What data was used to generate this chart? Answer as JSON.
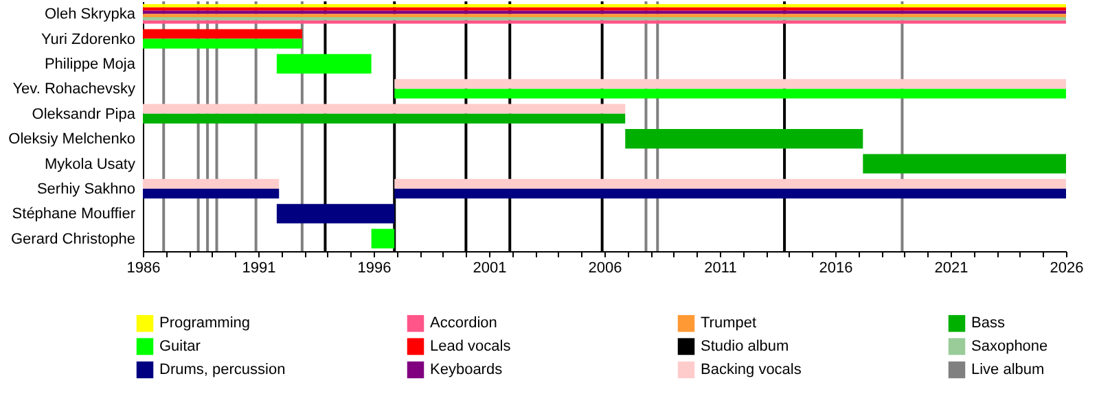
{
  "chart_data": {
    "type": "bar",
    "orientation": "horizontal",
    "legend": "bottom",
    "categories": [
      "Oleh Skrypka",
      "Yuri Zdorenko",
      "Philippe Moja",
      "Yev. Rohachevsky",
      "Oleksandr Pipa",
      "Oleksiy Melchenko",
      "Mykola Usaty",
      "Serhiy Sakhno",
      "Stéphane Mouffier",
      "Gerard Christophe"
    ],
    "xlim": [
      1986,
      2026
    ],
    "xticks": [
      1986,
      {
        "value": 1987,
        "label": null
      },
      {
        "value": 1988,
        "label": null
      },
      {
        "value": 1989,
        "label": null
      },
      {
        "value": 1990,
        "label": null
      },
      1991,
      {
        "value": 1992,
        "label": null
      },
      {
        "value": 1993,
        "label": null
      },
      {
        "value": 1994,
        "label": null
      },
      {
        "value": 1995,
        "label": null
      },
      1996,
      {
        "value": 1997,
        "label": null
      },
      {
        "value": 1998,
        "label": null
      },
      {
        "value": 1999,
        "label": null
      },
      {
        "value": 2000,
        "label": null
      },
      2001,
      {
        "value": 2002,
        "label": null
      },
      {
        "value": 2003,
        "label": null
      },
      {
        "value": 2004,
        "label": null
      },
      {
        "value": 2005,
        "label": null
      },
      2006,
      {
        "value": 2007,
        "label": null
      },
      {
        "value": 2008,
        "label": null
      },
      {
        "value": 2009,
        "label": null
      },
      {
        "value": 2010,
        "label": null
      },
      2011,
      {
        "value": 2012,
        "label": null
      },
      {
        "value": 2013,
        "label": null
      },
      {
        "value": 2014,
        "label": null
      },
      {
        "value": 2015,
        "label": null
      },
      2016,
      {
        "value": 2017,
        "label": null
      },
      {
        "value": 2018,
        "label": null
      },
      {
        "value": 2019,
        "label": null
      },
      {
        "value": 2020,
        "label": null
      },
      2021,
      {
        "value": 2022,
        "label": null
      },
      {
        "value": 2023,
        "label": null
      },
      {
        "value": 2024,
        "label": null
      },
      {
        "value": 2025,
        "label": null
      },
      2026
    ],
    "series": [
      {
        "name": "Programming",
        "color": "#ffff00",
        "values": [
          40,
          null,
          null,
          null,
          null,
          null,
          null,
          null,
          null,
          null
        ],
        "base": [
          1986,
          null,
          null,
          null,
          null,
          null,
          null,
          null,
          null,
          null
        ]
      },
      {
        "name": "Lead vocals",
        "color": "#ff0000",
        "values": [
          40,
          6.9,
          null,
          null,
          null,
          null,
          null,
          null,
          null,
          null
        ],
        "base": [
          1986,
          1986,
          null,
          null,
          null,
          null,
          null,
          null,
          null,
          null
        ]
      },
      {
        "name": "Backing vocals",
        "color": "#ffcccc",
        "values": [
          null,
          null,
          null,
          29.1,
          20.9,
          null,
          null,
          5.9,
          null,
          null
        ],
        "base": [
          null,
          null,
          null,
          1996.9,
          1986,
          null,
          null,
          1986,
          null,
          null
        ]
      },
      {
        "name": "Guitar",
        "color": "#00ff00",
        "values": [
          null,
          6.9,
          4.1,
          29.1,
          null,
          null,
          null,
          null,
          null,
          1.0
        ],
        "base": [
          null,
          1986,
          1991.8,
          1996.9,
          null,
          null,
          null,
          null,
          null,
          1995.9
        ]
      },
      {
        "name": "Keyboards",
        "color": "#800080",
        "values": [
          40,
          null,
          null,
          null,
          null,
          null,
          null,
          null,
          null,
          null
        ],
        "base": [
          1986,
          null,
          null,
          null,
          null,
          null,
          null,
          null,
          null,
          null
        ]
      },
      {
        "name": "Bass",
        "color": "#00b000",
        "values": [
          null,
          null,
          null,
          null,
          20.9,
          10.3,
          8.8,
          null,
          null,
          null
        ],
        "base": [
          null,
          null,
          null,
          null,
          1986,
          2006.9,
          2017.2,
          null,
          null,
          null
        ]
      },
      {
        "name": "Drums, percussion",
        "color": "#000080",
        "values": [
          null,
          null,
          null,
          null,
          null,
          null,
          null,
          5.9,
          5.1,
          null
        ],
        "base": [
          null,
          null,
          null,
          null,
          null,
          null,
          null,
          1986,
          1991.8,
          null
        ]
      },
      {
        "name": "Trumpet",
        "color": "#ff9933",
        "values": [
          40,
          null,
          null,
          null,
          null,
          null,
          null,
          null,
          null,
          null
        ],
        "base": [
          1986,
          null,
          null,
          null,
          null,
          null,
          null,
          null,
          null,
          null
        ]
      },
      {
        "name": "Saxophone",
        "color": "#99cc99",
        "values": [
          40,
          null,
          null,
          null,
          null,
          null,
          null,
          null,
          null,
          null
        ],
        "base": [
          1986,
          null,
          null,
          null,
          null,
          null,
          null,
          null,
          null,
          null
        ]
      },
      {
        "name": "Accordion",
        "color": "#ff5588",
        "values": [
          40,
          null,
          null,
          null,
          null,
          null,
          null,
          null,
          null,
          null
        ],
        "base": [
          1986,
          null,
          null,
          null,
          null,
          null,
          null,
          null,
          null,
          null
        ]
      },
      {
        "color": "#ffcccc",
        "values": [
          null,
          null,
          null,
          null,
          null,
          null,
          null,
          29.1,
          null,
          null
        ],
        "base": [
          null,
          null,
          null,
          null,
          null,
          null,
          null,
          1996.9,
          null,
          null
        ]
      },
      {
        "color": "#000080",
        "values": [
          null,
          null,
          null,
          null,
          null,
          null,
          null,
          29.1,
          null,
          null
        ],
        "base": [
          null,
          null,
          null,
          null,
          null,
          null,
          null,
          1996.9,
          null,
          null
        ]
      }
    ],
    "ref_lines": [
      {
        "axis": "x",
        "value": 1993.9,
        "label": "Studio album",
        "color": "#000000"
      },
      {
        "axis": "x",
        "value": 1996.9,
        "color": "#000000"
      },
      {
        "axis": "x",
        "value": 2000.0,
        "color": "#000000"
      },
      {
        "axis": "x",
        "value": 2001.9,
        "color": "#000000"
      },
      {
        "axis": "x",
        "value": 2005.9,
        "color": "#000000"
      },
      {
        "axis": "x",
        "value": 2013.8,
        "color": "#000000"
      },
      {
        "axis": "x",
        "value": 1986.9,
        "label": "Live album",
        "color": "#808080"
      },
      {
        "axis": "x",
        "value": 1988.4,
        "color": "#808080"
      },
      {
        "axis": "x",
        "value": 1988.8,
        "color": "#808080"
      },
      {
        "axis": "x",
        "value": 1989.2,
        "color": "#808080"
      },
      {
        "axis": "x",
        "value": 1990.9,
        "color": "#808080"
      },
      {
        "axis": "x",
        "value": 1992.9,
        "color": "#808080"
      },
      {
        "axis": "x",
        "value": 2007.8,
        "color": "#808080"
      },
      {
        "axis": "x",
        "value": 2008.3,
        "color": "#808080"
      },
      {
        "axis": "x",
        "value": 2018.9,
        "color": "#808080"
      }
    ]
  }
}
